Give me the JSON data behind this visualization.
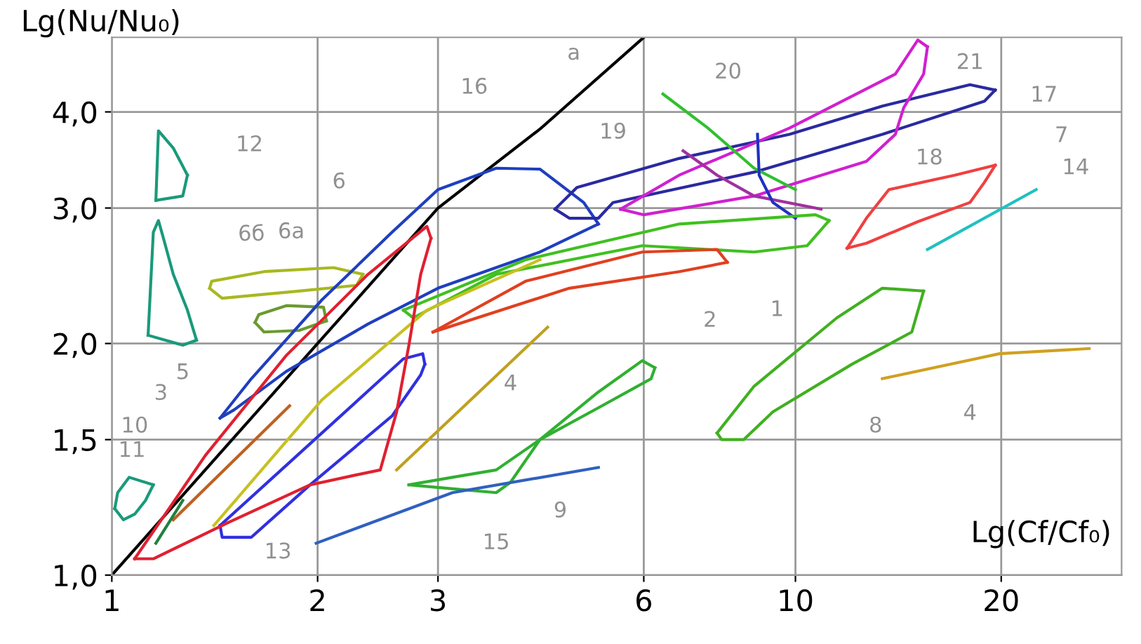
{
  "chart_data": {
    "type": "line",
    "xlabel": "Lg(Cf/Cf₀)",
    "ylabel": "Lg(Nu/Nu₀)",
    "log": "xy",
    "grid": true,
    "marker": "none",
    "line_style": "solid",
    "xlim": [
      1,
      30
    ],
    "ylim": [
      1,
      5
    ],
    "xticks": [
      1,
      2,
      3,
      6,
      10,
      20
    ],
    "yticks": [
      {
        "value": 1,
        "label": "1,0"
      },
      {
        "value": 1.5,
        "label": "1,5"
      },
      {
        "value": 2,
        "label": "2,0"
      },
      {
        "value": 3,
        "label": "3,0"
      },
      {
        "value": 4,
        "label": "4,0"
      }
    ],
    "series": [
      {
        "color": "#000000",
        "x": [
          1,
          2,
          3,
          4.23,
          6
        ],
        "values": [
          1,
          2,
          3,
          3.8,
          5
        ]
      },
      {
        "color": "#1a9a7a",
        "x": [
          1.16,
          1.17,
          1.23,
          1.29
        ],
        "values": [
          3.07,
          3.78,
          3.59,
          3.31
        ]
      },
      {
        "color": "#1a9a7a",
        "x": [
          1.16,
          1.27,
          1.29
        ],
        "values": [
          3.07,
          3.11,
          3.31
        ]
      },
      {
        "color": "#1a9a7a",
        "x": [
          1.13,
          1.15,
          1.17,
          1.19,
          1.23,
          1.29,
          1.33
        ],
        "values": [
          2.05,
          2.79,
          2.89,
          2.74,
          2.46,
          2.21,
          2.02
        ]
      },
      {
        "color": "#1a9a7a",
        "x": [
          1.13,
          1.27,
          1.33
        ],
        "values": [
          2.05,
          1.99,
          2.02
        ]
      },
      {
        "color": "#a8b820",
        "x": [
          1.39,
          1.4,
          1.67,
          2.11,
          2.33
        ],
        "values": [
          2.36,
          2.41,
          2.48,
          2.51,
          2.46
        ]
      },
      {
        "color": "#a8b820",
        "x": [
          1.39,
          1.45,
          1.88,
          2.28,
          2.33
        ],
        "values": [
          2.36,
          2.29,
          2.34,
          2.38,
          2.46
        ]
      },
      {
        "color": "#6a9a30",
        "x": [
          1.62,
          1.64,
          1.8,
          2.04,
          2.06
        ],
        "values": [
          2.13,
          2.18,
          2.24,
          2.23,
          2.14
        ]
      },
      {
        "color": "#6a9a30",
        "x": [
          1.62,
          1.67,
          1.88,
          2.06
        ],
        "values": [
          2.13,
          2.07,
          2.08,
          2.14
        ]
      },
      {
        "color": "#1f3fbf",
        "x": [
          1.44,
          1.6,
          2.03,
          2.57,
          3,
          3.65,
          4.23,
          4.9,
          5.15
        ],
        "values": [
          1.6,
          1.8,
          2.28,
          2.79,
          3.17,
          3.38,
          3.37,
          3.05,
          2.86
        ]
      },
      {
        "color": "#1f3fbf",
        "x": [
          1.44,
          1.51,
          1.8,
          2.37,
          3,
          4.23,
          5.15
        ],
        "values": [
          1.6,
          1.64,
          1.84,
          2.12,
          2.36,
          2.63,
          2.86
        ]
      },
      {
        "color": "#2a2aa0",
        "x": [
          4.45,
          4.79,
          6.76,
          9.8,
          13.4,
          18.0,
          19.6
        ],
        "values": [
          2.99,
          3.19,
          3.48,
          3.74,
          4.07,
          4.34,
          4.27
        ]
      },
      {
        "color": "#2a2aa0",
        "x": [
          4.45,
          4.67,
          5.15,
          5.41,
          8.7,
          13.4,
          18.9,
          19.6
        ],
        "values": [
          2.99,
          2.91,
          2.91,
          3.05,
          3.34,
          3.74,
          4.13,
          4.27
        ]
      },
      {
        "color": "#d020d0",
        "x": [
          5.55,
          6.76,
          9.8,
          14.0,
          15.1,
          15.6
        ],
        "values": [
          2.99,
          3.31,
          3.81,
          4.48,
          4.96,
          4.86
        ]
      },
      {
        "color": "#d020d0",
        "x": [
          5.55,
          6.0,
          8.7,
          12.7,
          14.0,
          14.4,
          15.4,
          15.6
        ],
        "values": [
          2.99,
          2.94,
          3.11,
          3.45,
          3.74,
          4.05,
          4.48,
          4.86
        ]
      },
      {
        "color": "#a030a0",
        "x": [
          6.85,
          7.68,
          8.7,
          10.9
        ],
        "values": [
          3.56,
          3.31,
          3.11,
          2.99
        ]
      },
      {
        "color": "#30c030",
        "x": [
          6.4,
          7.45,
          8.7,
          10.0
        ],
        "values": [
          4.22,
          3.81,
          3.38,
          3.17
        ]
      },
      {
        "color": "#2030c0",
        "x": [
          8.8,
          8.85,
          9.27,
          10.0
        ],
        "values": [
          3.74,
          3.31,
          3.05,
          2.91
        ]
      },
      {
        "color": "#40c020",
        "x": [
          2.67,
          4.03,
          6.76,
          10.7,
          11.2
        ],
        "values": [
          2.21,
          2.57,
          2.86,
          2.94,
          2.89
        ]
      },
      {
        "color": "#40c020",
        "x": [
          2.67,
          2.76,
          3.65,
          5.97,
          8.7,
          10.4,
          11.2
        ],
        "values": [
          2.21,
          2.16,
          2.46,
          2.68,
          2.63,
          2.68,
          2.89
        ]
      },
      {
        "color": "#e04020",
        "x": [
          2.95,
          4.03,
          5.97,
          7.68,
          7.95
        ],
        "values": [
          2.07,
          2.41,
          2.63,
          2.65,
          2.55
        ]
      },
      {
        "color": "#e04020",
        "x": [
          2.95,
          4.67,
          6.76,
          7.95
        ],
        "values": [
          2.07,
          2.36,
          2.48,
          2.55
        ]
      },
      {
        "color": "#c06020",
        "x": [
          1.23,
          1.82
        ],
        "values": [
          1.18,
          1.66
        ]
      },
      {
        "color": "#c8c020",
        "x": [
          1.41,
          2.03,
          2.89,
          4.23
        ],
        "values": [
          1.16,
          1.69,
          2.21,
          2.57
        ]
      },
      {
        "color": "#208040",
        "x": [
          1.16,
          1.27
        ],
        "values": [
          1.1,
          1.25
        ]
      },
      {
        "color": "#3030e0",
        "x": [
          1.44,
          1.98,
          2.67,
          2.85,
          2.87
        ],
        "values": [
          1.16,
          1.5,
          1.91,
          1.94,
          1.88
        ]
      },
      {
        "color": "#3030e0",
        "x": [
          1.44,
          1.45,
          1.6,
          1.95,
          2.57,
          2.83,
          2.87
        ],
        "values": [
          1.16,
          1.12,
          1.12,
          1.31,
          1.61,
          1.82,
          1.88
        ]
      },
      {
        "color": "#e02030",
        "x": [
          1.08,
          1.37,
          1.8,
          2.37,
          2.89,
          2.93
        ],
        "values": [
          1.05,
          1.43,
          1.93,
          2.46,
          2.84,
          2.74
        ]
      },
      {
        "color": "#e02030",
        "x": [
          1.08,
          1.15,
          1.48,
          1.95,
          2.28,
          2.47,
          2.61,
          2.72,
          2.83,
          2.93
        ],
        "values": [
          1.05,
          1.05,
          1.17,
          1.31,
          1.35,
          1.37,
          1.63,
          1.99,
          2.46,
          2.74
        ]
      },
      {
        "color": "#1a9a7a",
        "x": [
          1.01,
          1.02,
          1.06,
          1.15
        ],
        "values": [
          1.22,
          1.28,
          1.34,
          1.31
        ]
      },
      {
        "color": "#1a9a7a",
        "x": [
          1.01,
          1.04,
          1.08,
          1.12,
          1.15
        ],
        "values": [
          1.22,
          1.18,
          1.2,
          1.25,
          1.31
        ]
      },
      {
        "color": "#c0a020",
        "x": [
          2.61,
          4.34
        ],
        "values": [
          1.37,
          2.1
        ]
      },
      {
        "color": "#d0a020",
        "x": [
          13.4,
          19.9,
          26.9
        ],
        "values": [
          1.8,
          1.94,
          1.97
        ]
      },
      {
        "color": "#20c0c0",
        "x": [
          15.6,
          22.5
        ],
        "values": [
          2.65,
          3.17
        ]
      },
      {
        "color": "#f04040",
        "x": [
          11.9,
          12.7,
          13.7,
          17.1,
          19.6
        ],
        "values": [
          2.66,
          2.91,
          3.17,
          3.31,
          3.41
        ]
      },
      {
        "color": "#f04040",
        "x": [
          11.9,
          12.7,
          15.1,
          18.0,
          18.9,
          19.6
        ],
        "values": [
          2.66,
          2.7,
          2.88,
          3.05,
          3.24,
          3.41
        ]
      },
      {
        "color": "#40b020",
        "x": [
          7.68,
          8.7,
          11.5,
          13.4,
          15.4
        ],
        "values": [
          1.53,
          1.76,
          2.16,
          2.36,
          2.34
        ]
      },
      {
        "color": "#40b020",
        "x": [
          7.68,
          7.8,
          8.4,
          9.27,
          12.1,
          14.8,
          15.4
        ],
        "values": [
          1.53,
          1.5,
          1.5,
          1.63,
          1.88,
          2.07,
          2.34
        ]
      },
      {
        "color": "#30b030",
        "x": [
          2.72,
          3.15,
          3.65,
          4.23,
          5.15,
          5.97,
          6.23
        ],
        "values": [
          1.31,
          1.34,
          1.37,
          1.5,
          1.73,
          1.9,
          1.86
        ]
      },
      {
        "color": "#30b030",
        "x": [
          2.72,
          3.0,
          3.65,
          3.83,
          4.23,
          5.15,
          6.15,
          6.23
        ],
        "values": [
          1.31,
          1.3,
          1.28,
          1.32,
          1.5,
          1.65,
          1.8,
          1.86
        ]
      },
      {
        "color": "#3060c0",
        "x": [
          1.99,
          3.15,
          5.15
        ],
        "values": [
          1.1,
          1.28,
          1.38
        ]
      }
    ],
    "annotations": [
      "а",
      "12",
      "16",
      "6",
      "6б",
      "6а",
      "20",
      "19",
      "21",
      "17",
      "18",
      "7",
      "14",
      "1",
      "2",
      "5",
      "3",
      "10",
      "11",
      "13",
      "4",
      "4",
      "15",
      "9",
      "8"
    ]
  }
}
